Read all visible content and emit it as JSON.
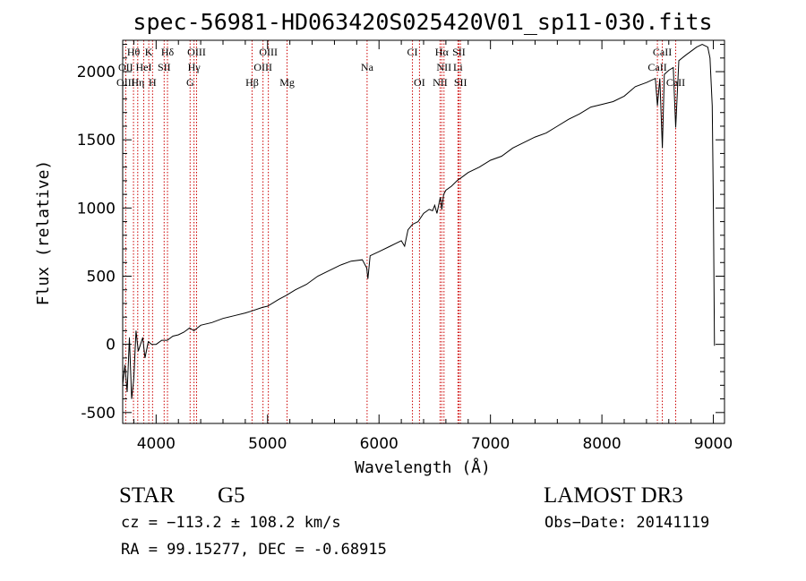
{
  "chart_data": {
    "type": "line",
    "title": "spec-56981-HD063420S025420V01_sp11-030.fits",
    "xlabel": "Wavelength (Å)",
    "ylabel": "Flux (relative)",
    "xlim": [
      3700,
      9100
    ],
    "ylim": [
      -580,
      2230
    ],
    "xticks": [
      4000,
      5000,
      6000,
      7000,
      8000,
      9000
    ],
    "yticks": [
      -500,
      0,
      500,
      1000,
      1500,
      2000
    ],
    "grid": false,
    "series": [
      {
        "name": "spectrum",
        "x": [
          3700,
          3720,
          3740,
          3760,
          3780,
          3800,
          3820,
          3840,
          3860,
          3880,
          3900,
          3930,
          3960,
          4000,
          4050,
          4100,
          4150,
          4200,
          4250,
          4300,
          4340,
          4400,
          4500,
          4600,
          4700,
          4800,
          4860,
          4950,
          5000,
          5100,
          5170,
          5250,
          5350,
          5450,
          5550,
          5650,
          5750,
          5850,
          5890,
          5900,
          5920,
          6000,
          6100,
          6150,
          6200,
          6230,
          6260,
          6300,
          6350,
          6400,
          6450,
          6480,
          6500,
          6520,
          6550,
          6563,
          6580,
          6600,
          6650,
          6700,
          6750,
          6800,
          6900,
          7000,
          7100,
          7200,
          7300,
          7400,
          7500,
          7600,
          7700,
          7800,
          7900,
          8000,
          8100,
          8200,
          8300,
          8400,
          8480,
          8498,
          8520,
          8542,
          8560,
          8600,
          8640,
          8662,
          8690,
          8750,
          8800,
          8850,
          8900,
          8950,
          8970,
          8990,
          9000,
          9010
        ],
        "y": [
          -300,
          -150,
          -350,
          50,
          -400,
          -250,
          100,
          -50,
          0,
          50,
          -100,
          20,
          0,
          0,
          30,
          30,
          60,
          70,
          90,
          120,
          100,
          140,
          160,
          190,
          210,
          230,
          245,
          270,
          280,
          330,
          360,
          400,
          440,
          500,
          540,
          580,
          610,
          620,
          560,
          480,
          650,
          680,
          720,
          740,
          760,
          720,
          840,
          880,
          900,
          960,
          990,
          980,
          1020,
          960,
          1080,
          990,
          1100,
          1130,
          1160,
          1200,
          1230,
          1260,
          1300,
          1350,
          1380,
          1440,
          1480,
          1520,
          1550,
          1600,
          1650,
          1690,
          1740,
          1760,
          1780,
          1820,
          1890,
          1920,
          1950,
          1750,
          1950,
          1440,
          1980,
          2010,
          2030,
          1590,
          2080,
          2120,
          2150,
          2180,
          2200,
          2180,
          2100,
          1750,
          1000,
          -10
        ]
      }
    ],
    "line_labels": [
      {
        "name": "Hθ",
        "x": 3797,
        "row": 1
      },
      {
        "name": "K",
        "x": 3934,
        "row": 1
      },
      {
        "name": "Hδ",
        "x": 4102,
        "row": 1
      },
      {
        "name": "OIII",
        "x": 4363,
        "row": 1
      },
      {
        "name": "OIII",
        "x": 5007,
        "row": 1
      },
      {
        "name": "CI",
        "x": 6300,
        "row": 1
      },
      {
        "name": "Hα",
        "x": 6563,
        "row": 1
      },
      {
        "name": "SII",
        "x": 6717,
        "row": 1
      },
      {
        "name": "CaII",
        "x": 8542,
        "row": 1
      },
      {
        "name": "OII",
        "x": 3727,
        "row": 2
      },
      {
        "name": "HeI",
        "x": 3889,
        "row": 2
      },
      {
        "name": "SII",
        "x": 4072,
        "row": 2
      },
      {
        "name": "Hγ",
        "x": 4340,
        "row": 2
      },
      {
        "name": "OIII",
        "x": 4959,
        "row": 2
      },
      {
        "name": "Na",
        "x": 5893,
        "row": 2
      },
      {
        "name": "NII",
        "x": 6583,
        "row": 2
      },
      {
        "name": "Li",
        "x": 6708,
        "row": 2
      },
      {
        "name": "CaII",
        "x": 8498,
        "row": 2
      },
      {
        "name": "OIII",
        "x": 3727,
        "row": 3
      },
      {
        "name": "Hη",
        "x": 3835,
        "row": 3
      },
      {
        "name": "H",
        "x": 3968,
        "row": 3
      },
      {
        "name": "G",
        "x": 4305,
        "row": 3
      },
      {
        "name": "Hβ",
        "x": 4861,
        "row": 3
      },
      {
        "name": "Mg",
        "x": 5175,
        "row": 3
      },
      {
        "name": "OI",
        "x": 6363,
        "row": 3
      },
      {
        "name": "NII",
        "x": 6548,
        "row": 3
      },
      {
        "name": "SII",
        "x": 6731,
        "row": 3
      },
      {
        "name": "CaII",
        "x": 8662,
        "row": 3
      }
    ],
    "line_positions": [
      3727,
      3797,
      3835,
      3889,
      3934,
      3968,
      4072,
      4102,
      4305,
      4340,
      4363,
      4861,
      4959,
      5007,
      5175,
      5893,
      6300,
      6363,
      6548,
      6563,
      6583,
      6708,
      6717,
      6731,
      8498,
      8542,
      8662
    ]
  },
  "info": {
    "class_label": "STAR",
    "subclass_label": "G5",
    "survey_label": "LAMOST DR3",
    "redshift_text": "cz = −113.2 ± 108.2 km/s",
    "obs_date_text": "Obs−Date: 20141119",
    "coords_text": "RA =  99.15277, DEC =  -0.68915"
  },
  "colors": {
    "spectrum": "#000000",
    "line_marker": "#cc0000",
    "axis": "#000000"
  }
}
